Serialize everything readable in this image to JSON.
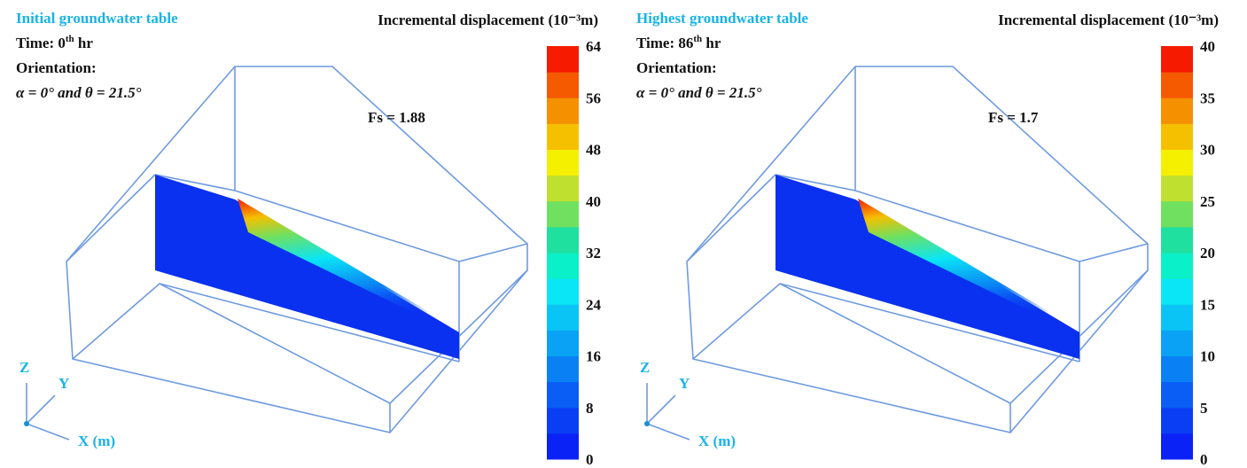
{
  "panels": [
    {
      "title": "Initial groundwater table",
      "time": "Time: 0",
      "time_sup": "th",
      "time_unit": " hr",
      "orientation": "Orientation:",
      "angles": "α = 0° and θ = 21.5°",
      "fs": "Fs = 1.88",
      "colorbar": {
        "title": "Incremental displacement (10⁻³m)",
        "ticks": [
          0,
          8,
          16,
          24,
          32,
          40,
          48,
          56,
          64
        ]
      },
      "axes": {
        "z": "Z",
        "y": "Y",
        "x": "X (m)"
      }
    },
    {
      "title": "Highest groundwater table",
      "time": "Time: 86",
      "time_sup": "th",
      "time_unit": " hr",
      "orientation": "Orientation:",
      "angles": "α = 0° and θ = 21.5°",
      "fs": "Fs = 1.7",
      "colorbar": {
        "title": "Incremental displacement (10⁻³m)",
        "ticks": [
          0,
          5,
          10,
          15,
          20,
          25,
          30,
          35,
          40
        ]
      },
      "axes": {
        "z": "Z",
        "y": "Y",
        "x": "X (m)"
      }
    }
  ],
  "colorbar_colors": [
    "#0a22f5",
    "#0a3ef5",
    "#0a5ef5",
    "#0a80f5",
    "#0aa2f5",
    "#0ac4f5",
    "#0ae6f5",
    "#0af0c8",
    "#20e0a0",
    "#70e060",
    "#c0e030",
    "#f5f000",
    "#f5c000",
    "#f59000",
    "#f55a00",
    "#f51a00"
  ]
}
